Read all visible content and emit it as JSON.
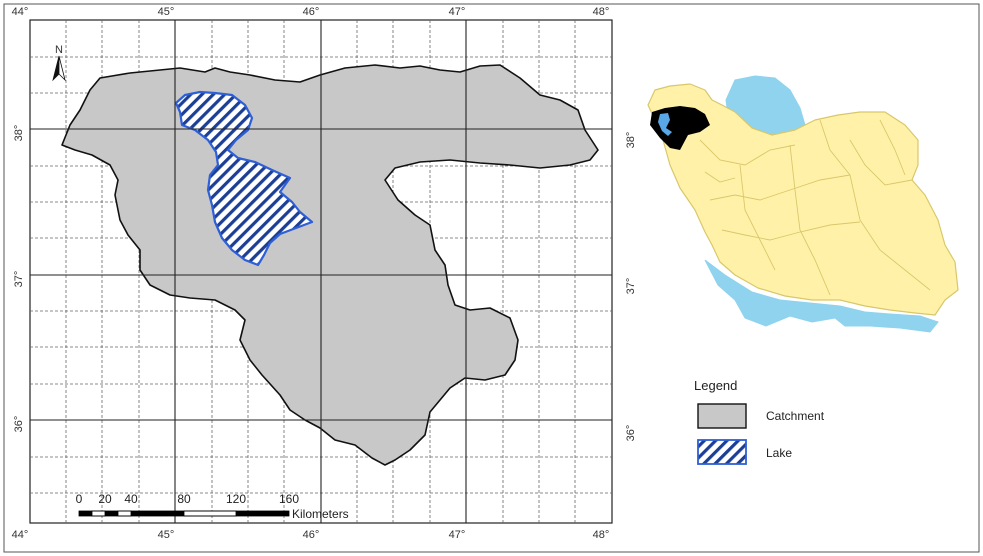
{
  "main_map": {
    "top_lon_labels": [
      "44°",
      "45°",
      "46°",
      "47°",
      "48°"
    ],
    "bottom_lon_labels": [
      "44°",
      "45°",
      "46°",
      "47°",
      "48°"
    ],
    "left_lat_labels": [
      "38°",
      "37°",
      "36°"
    ],
    "right_lat_labels": [
      "38°",
      "37°",
      "36°"
    ],
    "north_arrow_label": "N",
    "scale_bar": {
      "ticks": [
        "0",
        "20",
        "40",
        "80",
        "120",
        "160"
      ],
      "unit": "Kilometers"
    },
    "colors": {
      "catchment_fill": "#c8c8c8",
      "catchment_stroke": "#111111",
      "lake_stroke": "#2e5fd6",
      "grid_major": "#222222",
      "grid_minor": "#555555"
    }
  },
  "inset_map": {
    "lat_labels_left": [
      "38°",
      "37°"
    ],
    "lat_labels_right": [
      "38°",
      "37°",
      "36°"
    ],
    "colors": {
      "land_fill": "#fff2a8",
      "land_stroke": "#d9c76a",
      "water_fill": "#8fd3ee",
      "catchment_fill": "#000000",
      "lake_fill": "#5aa7e8"
    }
  },
  "legend": {
    "title": "Legend",
    "items": [
      {
        "label": "Catchment",
        "swatch": "catchment"
      },
      {
        "label": "Lake",
        "swatch": "lake"
      }
    ]
  }
}
